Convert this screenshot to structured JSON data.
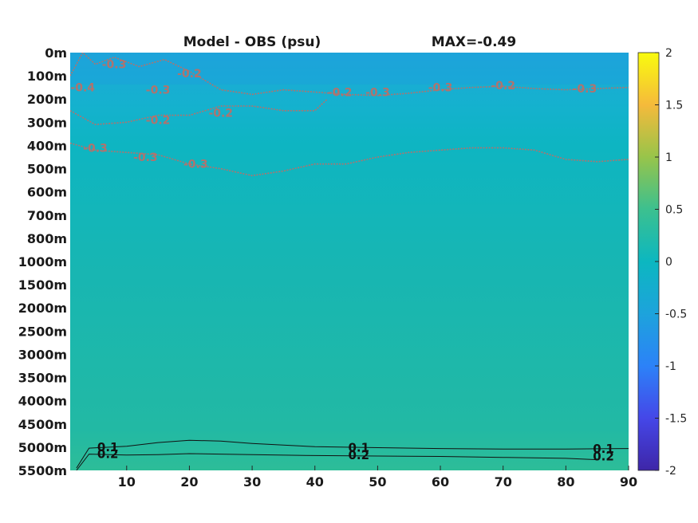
{
  "chart_data": {
    "type": "heatmap",
    "title": "Model - OBS (psu)",
    "annotation": "MAX=-0.49",
    "x_ticks": [
      10,
      20,
      30,
      40,
      50,
      60,
      70,
      80,
      90
    ],
    "xlim": [
      1,
      90
    ],
    "y_ticks": [
      "0m",
      "100m",
      "200m",
      "300m",
      "400m",
      "500m",
      "600m",
      "700m",
      "800m",
      "1000m",
      "1500m",
      "2000m",
      "2500m",
      "3000m",
      "3500m",
      "4000m",
      "4500m",
      "5000m",
      "5500m"
    ],
    "colorbar": {
      "range": [
        -2,
        2
      ],
      "ticks": [
        "2",
        "1.5",
        "1",
        "0.5",
        "0",
        "-0.5",
        "-1",
        "-1.5",
        "-2"
      ],
      "colormap": "parula"
    },
    "field_background_value": 0.0,
    "contours": [
      {
        "level": "-0.3",
        "points": [
          [
            1,
            100
          ],
          [
            3,
            0
          ],
          [
            5,
            50
          ],
          [
            8,
            20
          ],
          [
            12,
            60
          ],
          [
            16,
            30
          ],
          [
            20,
            80
          ],
          [
            25,
            160
          ],
          [
            30,
            180
          ],
          [
            35,
            160
          ],
          [
            40,
            170
          ],
          [
            45,
            180
          ],
          [
            50,
            185
          ],
          [
            55,
            175
          ],
          [
            60,
            160
          ],
          [
            65,
            150
          ],
          [
            70,
            145
          ],
          [
            75,
            155
          ],
          [
            80,
            160
          ],
          [
            85,
            155
          ],
          [
            90,
            150
          ]
        ]
      },
      {
        "level": "-0.2",
        "points": [
          [
            1,
            250
          ],
          [
            5,
            310
          ],
          [
            10,
            300
          ],
          [
            15,
            270
          ],
          [
            20,
            270
          ],
          [
            25,
            230
          ],
          [
            30,
            230
          ],
          [
            35,
            250
          ],
          [
            40,
            250
          ],
          [
            42,
            200
          ]
        ]
      },
      {
        "level": "-0.3",
        "points": [
          [
            1,
            390
          ],
          [
            5,
            420
          ],
          [
            10,
            430
          ],
          [
            15,
            440
          ],
          [
            20,
            480
          ],
          [
            25,
            500
          ],
          [
            30,
            530
          ],
          [
            35,
            510
          ],
          [
            40,
            480
          ],
          [
            45,
            480
          ],
          [
            50,
            450
          ],
          [
            55,
            430
          ],
          [
            60,
            420
          ],
          [
            65,
            410
          ],
          [
            70,
            410
          ],
          [
            75,
            420
          ],
          [
            80,
            460
          ],
          [
            85,
            470
          ],
          [
            90,
            460
          ]
        ]
      },
      {
        "level": "0.1",
        "points": [
          [
            2,
            5450
          ],
          [
            4,
            5020
          ],
          [
            10,
            4980
          ],
          [
            15,
            4900
          ],
          [
            20,
            4850
          ],
          [
            25,
            4870
          ],
          [
            30,
            4920
          ],
          [
            40,
            4990
          ],
          [
            50,
            5010
          ],
          [
            60,
            5030
          ],
          [
            70,
            5040
          ],
          [
            80,
            5040
          ],
          [
            90,
            5030
          ]
        ]
      },
      {
        "level": "0.2",
        "points": [
          [
            2,
            5540
          ],
          [
            4,
            5150
          ],
          [
            10,
            5170
          ],
          [
            15,
            5160
          ],
          [
            20,
            5140
          ],
          [
            25,
            5150
          ],
          [
            30,
            5160
          ],
          [
            40,
            5180
          ],
          [
            50,
            5190
          ],
          [
            60,
            5200
          ],
          [
            70,
            5220
          ],
          [
            80,
            5240
          ],
          [
            85,
            5270
          ]
        ]
      }
    ],
    "contour_labels": [
      {
        "text": "-0.3",
        "x": 8,
        "depth": 50
      },
      {
        "text": "-0.4",
        "x": 3,
        "depth": 150
      },
      {
        "text": "-0.3",
        "x": 15,
        "depth": 160
      },
      {
        "text": "-0.2",
        "x": 20,
        "depth": 90
      },
      {
        "text": "-0.2",
        "x": 44,
        "depth": 170
      },
      {
        "text": "-0.3",
        "x": 50,
        "depth": 170
      },
      {
        "text": "-0.3",
        "x": 60,
        "depth": 150
      },
      {
        "text": "-0.2",
        "x": 70,
        "depth": 140
      },
      {
        "text": "-0.3",
        "x": 83,
        "depth": 155
      },
      {
        "text": "-0.2",
        "x": 15,
        "depth": 290
      },
      {
        "text": "-0.2",
        "x": 25,
        "depth": 260
      },
      {
        "text": "-0.3",
        "x": 5,
        "depth": 410
      },
      {
        "text": "-0.3",
        "x": 13,
        "depth": 450
      },
      {
        "text": "-0.3",
        "x": 21,
        "depth": 480
      },
      {
        "text": "0.1",
        "x": 7,
        "depth": 5000
      },
      {
        "text": "0.2",
        "x": 7,
        "depth": 5150
      },
      {
        "text": "0.1",
        "x": 47,
        "depth": 5010
      },
      {
        "text": "0.2",
        "x": 47,
        "depth": 5170
      },
      {
        "text": "0.1",
        "x": 86,
        "depth": 5040
      },
      {
        "text": "0.2",
        "x": 86,
        "depth": 5200
      }
    ]
  }
}
